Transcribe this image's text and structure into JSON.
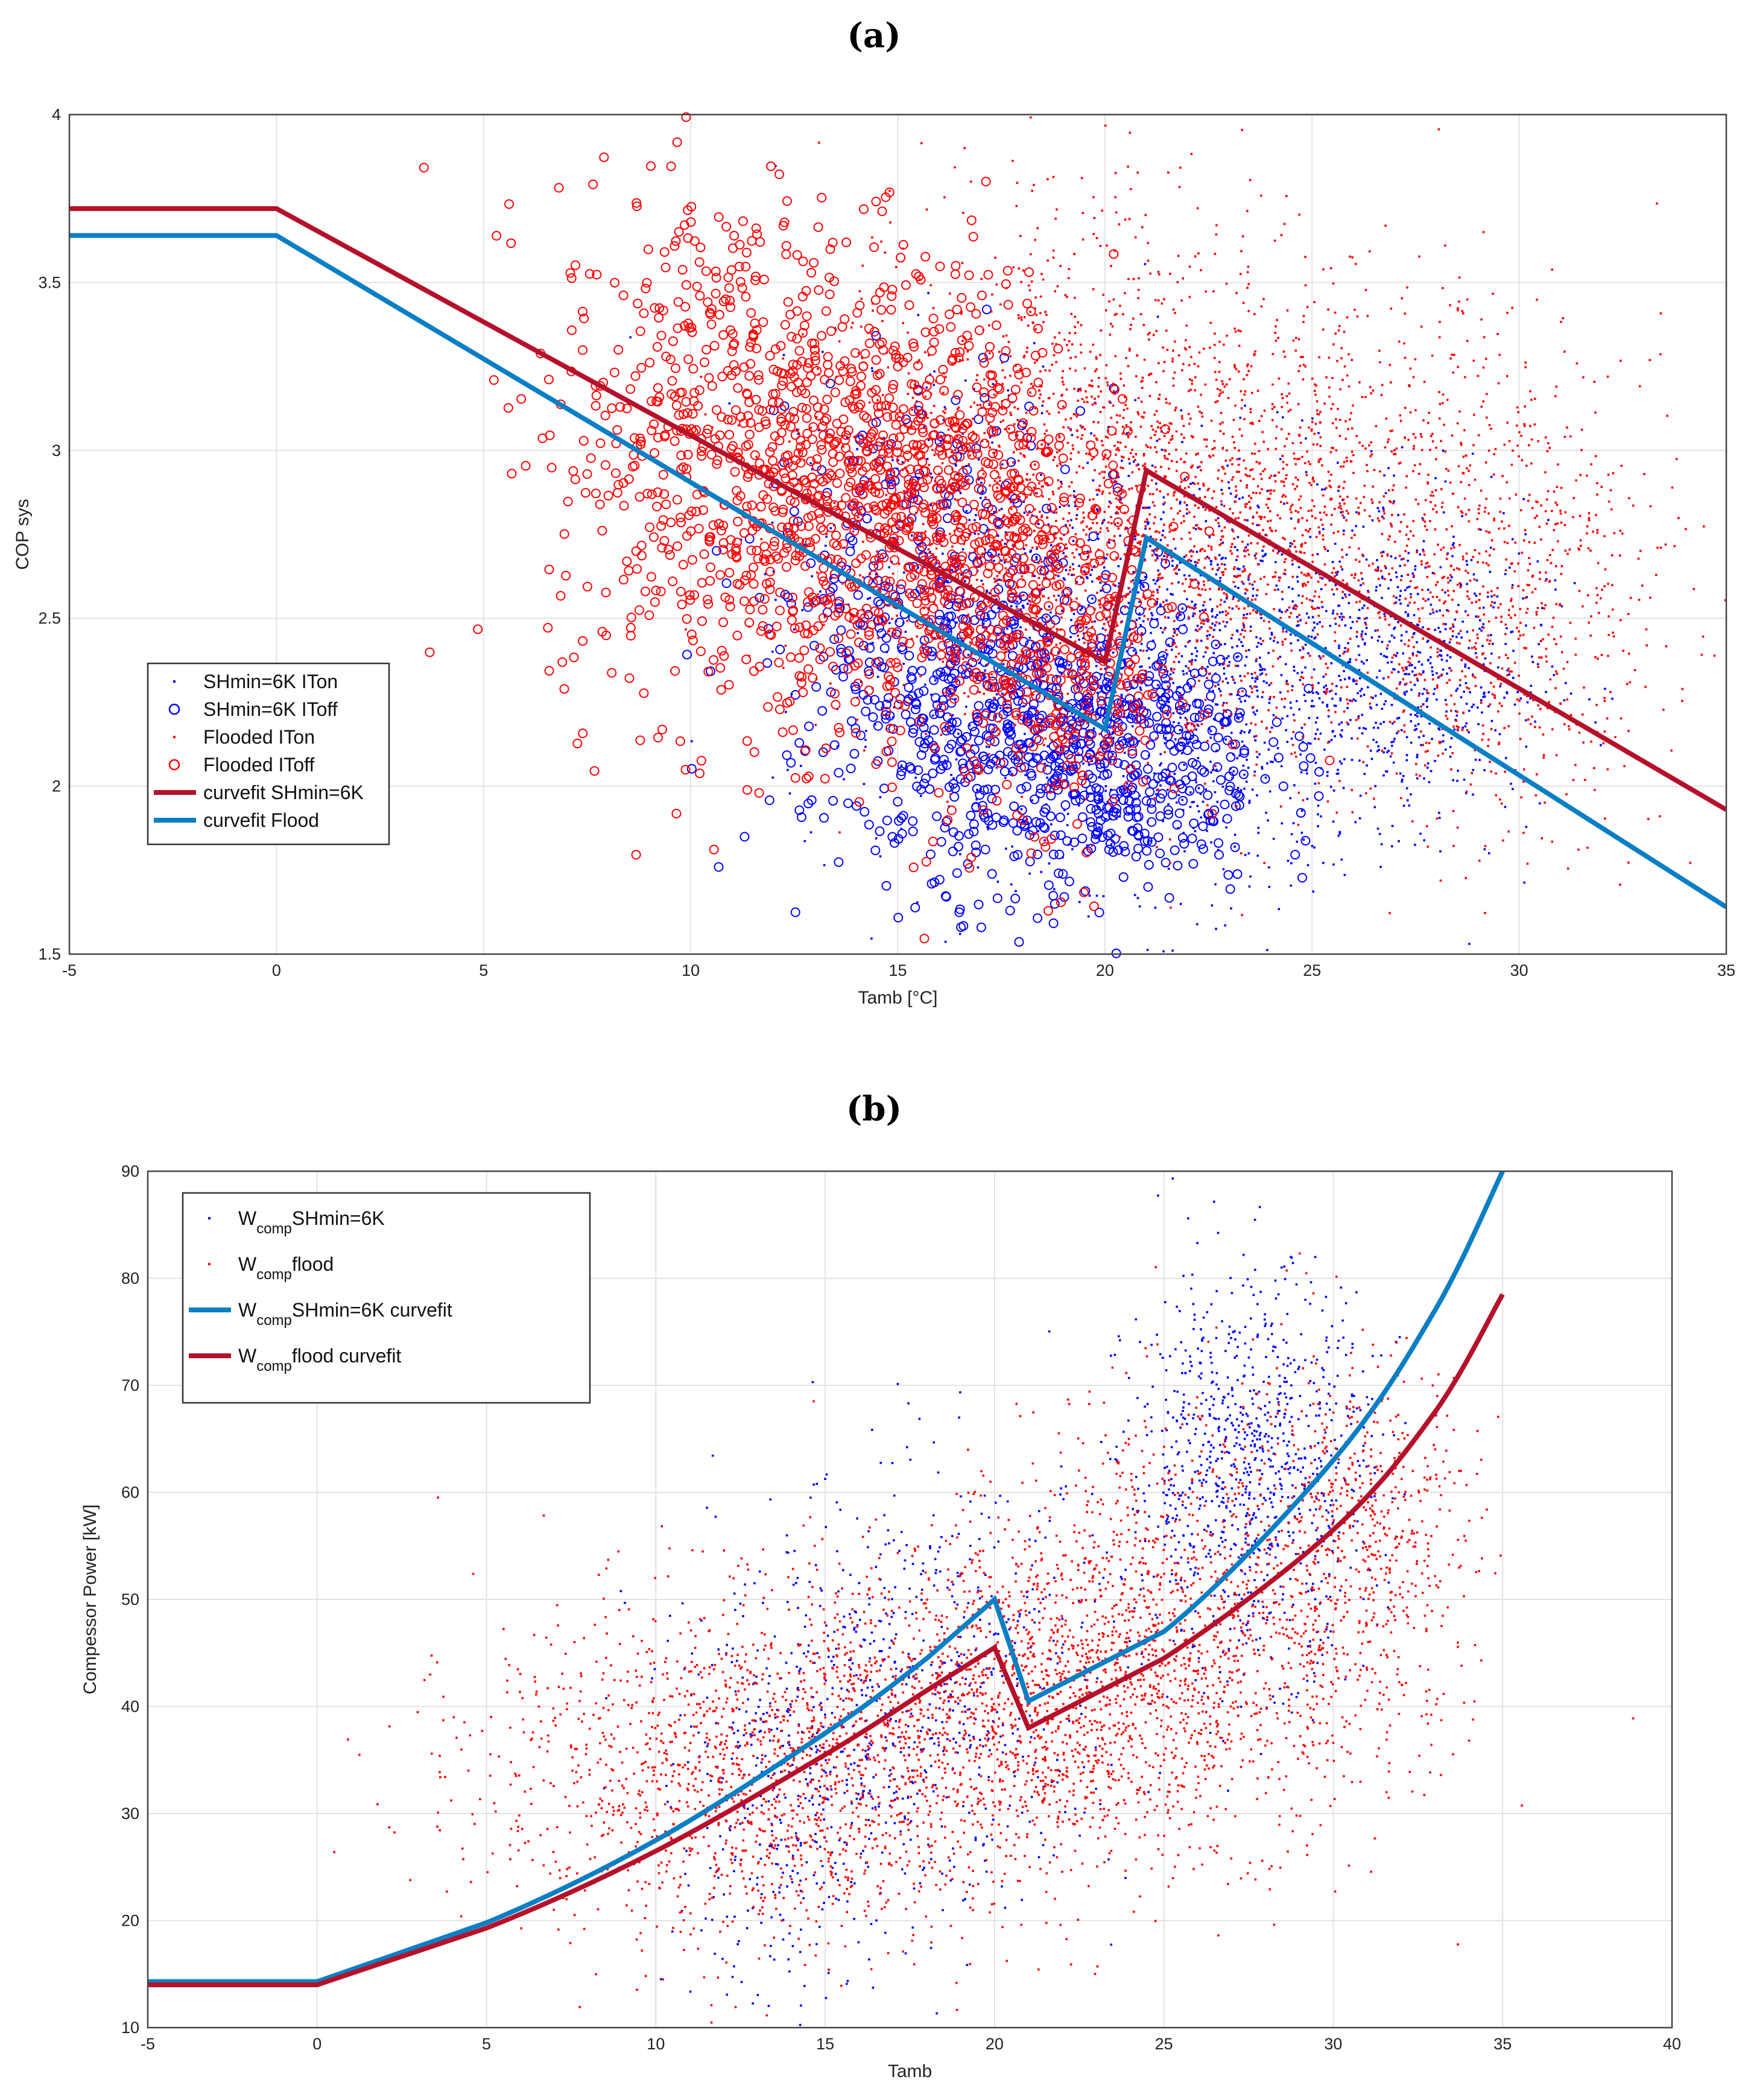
{
  "chart_data": [
    {
      "panel_label": "(a)",
      "type": "scatter",
      "xlabel": "Tamb [°C]",
      "ylabel": "COP sys",
      "xlim": [
        -5,
        35
      ],
      "ylim": [
        1.5,
        4
      ],
      "xticks": [
        -5,
        0,
        5,
        10,
        15,
        20,
        25,
        30,
        35
      ],
      "yticks": [
        1.5,
        2,
        2.5,
        3,
        3.5,
        4
      ],
      "grid": true,
      "legend_position": "left-middle",
      "scatter_series": [
        {
          "name": "SHmin=6K ITon",
          "color": "#0000ff",
          "marker": "dot",
          "clusters": [
            {
              "x": 22.5,
              "y": 2.35,
              "sx": 2.8,
              "sy": 0.32,
              "n": 1200
            },
            {
              "x": 27.5,
              "y": 2.35,
              "sx": 1.6,
              "sy": 0.22,
              "n": 500
            },
            {
              "x": 17.0,
              "y": 2.6,
              "sx": 2.5,
              "sy": 0.35,
              "n": 500
            }
          ]
        },
        {
          "name": "SHmin=6K IToff",
          "color": "#0000ff",
          "marker": "circle",
          "clusters": [
            {
              "x": 19.5,
              "y": 2.1,
              "sx": 2.2,
              "sy": 0.22,
              "n": 700
            },
            {
              "x": 15.5,
              "y": 2.45,
              "sx": 2.0,
              "sy": 0.35,
              "n": 400
            }
          ]
        },
        {
          "name": "Flooded ITon",
          "color": "#ff0000",
          "marker": "dot",
          "clusters": [
            {
              "x": 23.0,
              "y": 2.8,
              "sx": 4.2,
              "sy": 0.35,
              "n": 2400
            },
            {
              "x": 29.5,
              "y": 2.45,
              "sx": 2.0,
              "sy": 0.3,
              "n": 500
            },
            {
              "x": 18.5,
              "y": 3.0,
              "sx": 2.5,
              "sy": 0.4,
              "n": 600
            }
          ]
        },
        {
          "name": "Flooded IToff",
          "color": "#ff0000",
          "marker": "circle",
          "clusters": [
            {
              "x": 11.0,
              "y": 3.0,
              "sx": 2.2,
              "sy": 0.4,
              "n": 700
            },
            {
              "x": 15.5,
              "y": 2.85,
              "sx": 2.0,
              "sy": 0.35,
              "n": 800
            },
            {
              "x": 19.0,
              "y": 2.35,
              "sx": 1.5,
              "sy": 0.3,
              "n": 300
            }
          ]
        }
      ],
      "line_series": [
        {
          "name": "curvefit SHmin=6K",
          "color": "#b5112b",
          "x": [
            -5,
            0,
            20,
            21,
            35
          ],
          "y": [
            3.72,
            3.72,
            2.37,
            2.94,
            1.93
          ]
        },
        {
          "name": "curvefit Flood",
          "color": "#0a7fc4",
          "x": [
            -5,
            0,
            20,
            21,
            35
          ],
          "y": [
            3.64,
            3.64,
            2.17,
            2.74,
            1.64
          ]
        }
      ]
    },
    {
      "panel_label": "(b)",
      "type": "scatter",
      "xlabel": "Tamb",
      "ylabel": "Compessor Power [kW]",
      "xlim": [
        -5,
        40
      ],
      "ylim": [
        10,
        90
      ],
      "xticks": [
        -5,
        0,
        5,
        10,
        15,
        20,
        25,
        30,
        35,
        40
      ],
      "yticks": [
        10,
        20,
        30,
        40,
        50,
        60,
        70,
        80,
        90
      ],
      "grid": true,
      "legend_position": "top-left",
      "scatter_series": [
        {
          "name_main": "W",
          "name_sub": "comp",
          "name_rest": "SHmin=6K",
          "color": "#0000ff",
          "marker": "dot",
          "clusters": [
            {
              "x": 27.5,
              "y": 62,
              "sx": 1.8,
              "sy": 9,
              "n": 900
            },
            {
              "x": 18.0,
              "y": 42,
              "sx": 3.0,
              "sy": 10,
              "n": 600
            },
            {
              "x": 14.0,
              "y": 30,
              "sx": 1.8,
              "sy": 9,
              "n": 300
            }
          ]
        },
        {
          "name_main": "W",
          "name_sub": "comp",
          "name_rest": "flood",
          "color": "#ff0000",
          "marker": "dot",
          "clusters": [
            {
              "x": 13.0,
              "y": 34,
              "sx": 4.0,
              "sy": 8,
              "n": 1600
            },
            {
              "x": 21.0,
              "y": 40,
              "sx": 3.2,
              "sy": 8,
              "n": 1300
            },
            {
              "x": 26.0,
              "y": 48,
              "sx": 3.0,
              "sy": 10,
              "n": 1100
            },
            {
              "x": 31.0,
              "y": 55,
              "sx": 1.6,
              "sy": 9,
              "n": 500
            }
          ]
        }
      ],
      "line_series": [
        {
          "name_main": "W",
          "name_sub": "comp",
          "name_rest": "SHmin=6K curvefit",
          "color": "#0a7fc4",
          "x": [
            -5,
            0,
            5,
            10,
            15,
            18,
            20,
            21,
            25,
            30,
            33,
            35
          ],
          "y": [
            14.3,
            14.3,
            19.8,
            27.5,
            37.5,
            44.5,
            50.0,
            40.5,
            47.0,
            63.0,
            77.0,
            90.0
          ]
        },
        {
          "name_main": "W",
          "name_sub": "comp",
          "name_rest": "flood curvefit",
          "color": "#b5112b",
          "x": [
            -5,
            0,
            5,
            10,
            15,
            18,
            20,
            21,
            25,
            30,
            33,
            35
          ],
          "y": [
            14.0,
            14.0,
            19.3,
            26.5,
            35.5,
            41.5,
            45.5,
            38.0,
            44.5,
            56.5,
            67.5,
            78.5
          ]
        }
      ]
    }
  ]
}
